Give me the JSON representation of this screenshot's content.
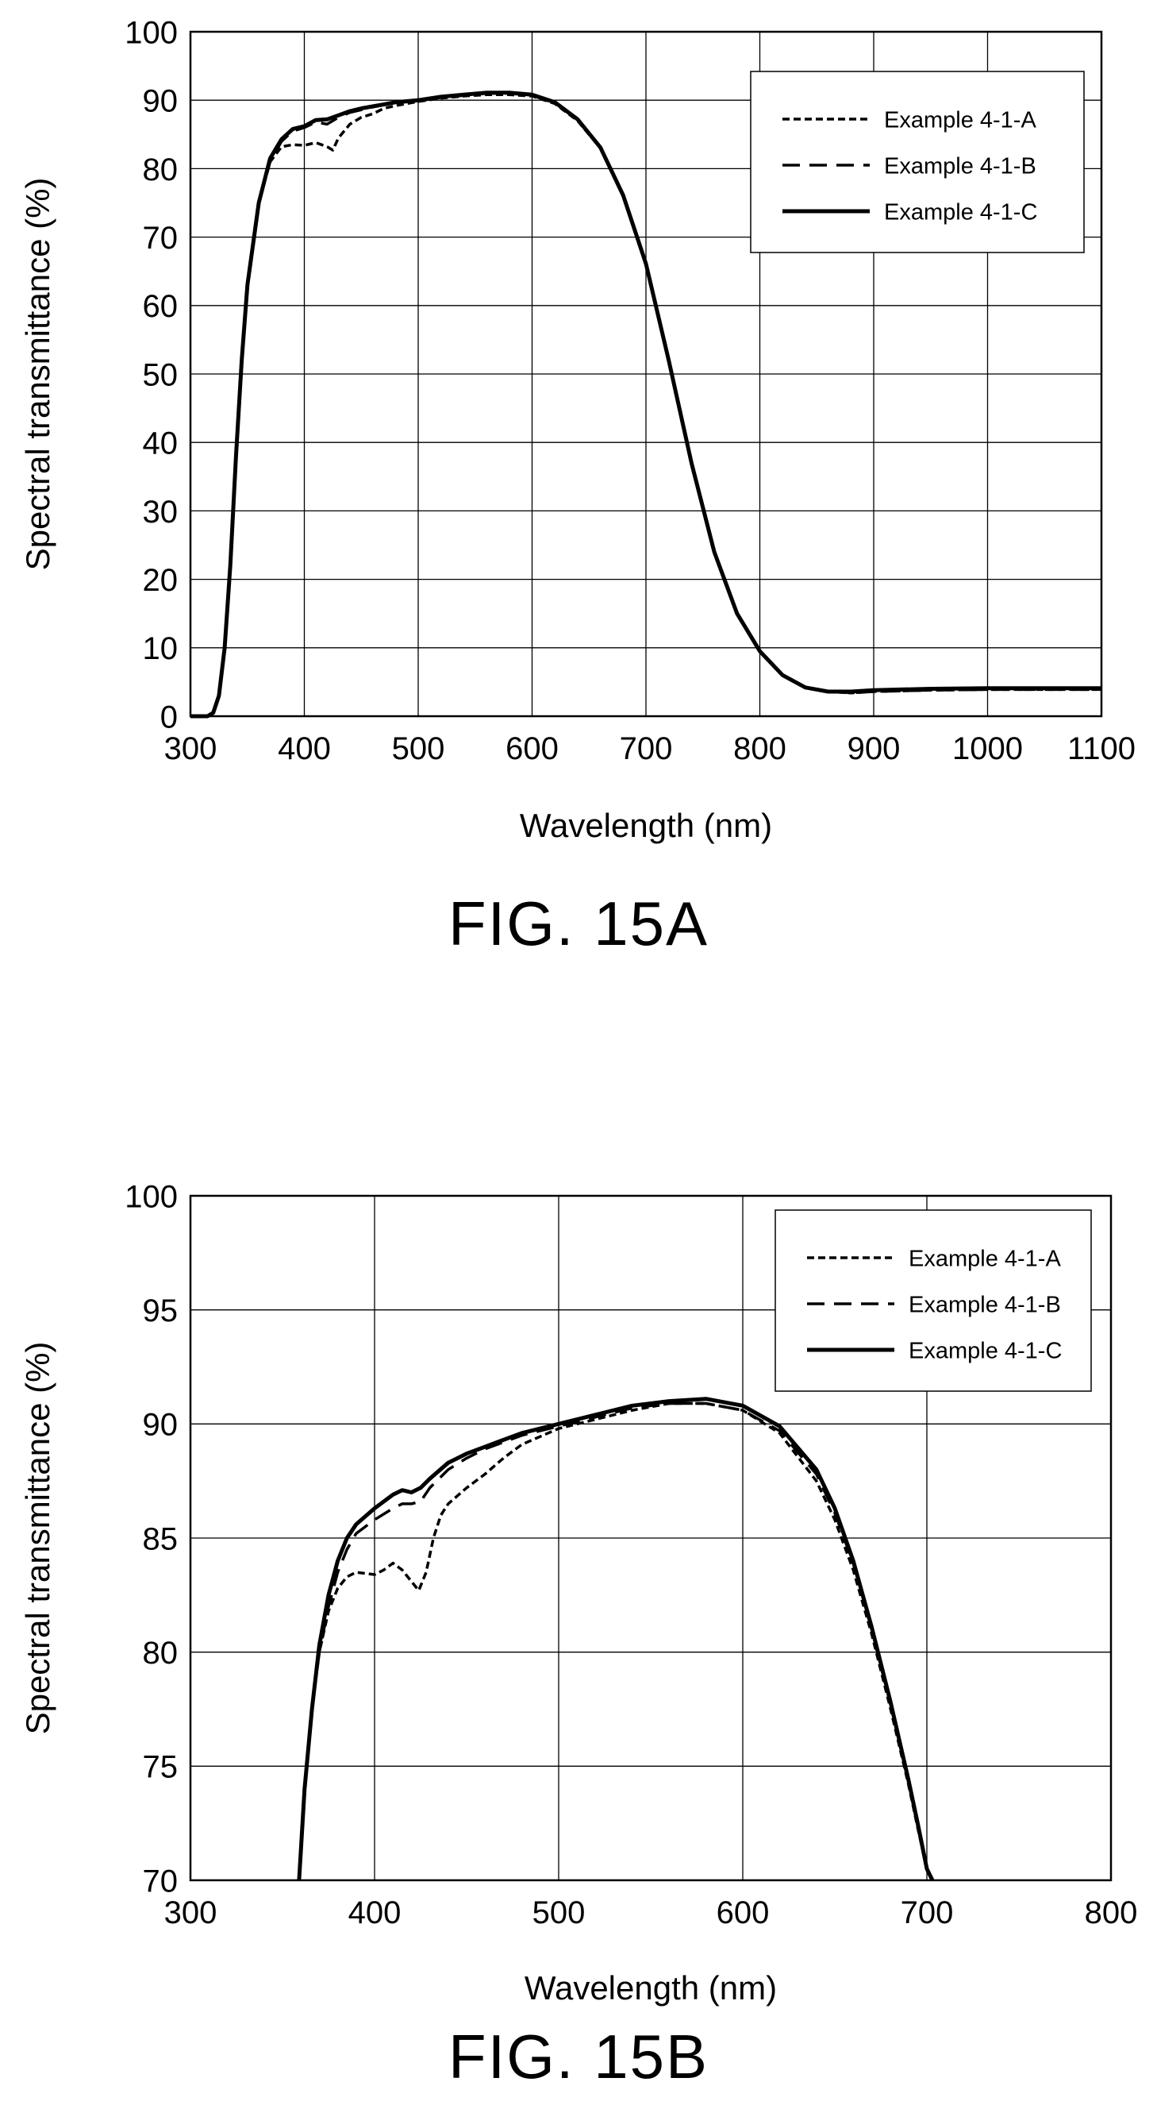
{
  "figures": [
    {
      "caption": "FIG. 15A",
      "chart_data": {
        "type": "line",
        "xlabel": "Wavelength (nm)",
        "ylabel": "Spectral transmittance (%)",
        "xlim": [
          300,
          1100
        ],
        "ylim": [
          0,
          100
        ],
        "xticks": [
          300,
          400,
          500,
          600,
          700,
          800,
          900,
          1000,
          1100
        ],
        "yticks": [
          0,
          10,
          20,
          30,
          40,
          50,
          60,
          70,
          80,
          90,
          100
        ],
        "grid": true,
        "legend_position": "top-right",
        "series": [
          {
            "name": "Example 4-1-A",
            "dash": "short-dash",
            "x": [
              300,
              315,
              320,
              325,
              330,
              335,
              340,
              345,
              350,
              360,
              370,
              380,
              390,
              400,
              410,
              420,
              425,
              430,
              440,
              450,
              460,
              470,
              480,
              500,
              520,
              540,
              560,
              580,
              600,
              620,
              640,
              660,
              680,
              700,
              720,
              740,
              760,
              780,
              800,
              820,
              840,
              860,
              880,
              900,
              950,
              1000,
              1050,
              1100
            ],
            "y": [
              0,
              0,
              0.5,
              3,
              10,
              22,
              38,
              52,
              63,
              75,
              81,
              83.2,
              83.5,
              83.4,
              83.8,
              83.2,
              82.7,
              84.5,
              86.5,
              87.5,
              88,
              88.8,
              89.2,
              89.8,
              90.3,
              90.6,
              90.8,
              90.8,
              90.6,
              89.5,
              87,
              83,
              76,
              66,
              52,
              37,
              24,
              15,
              9.5,
              6,
              4.2,
              3.6,
              3.4,
              3.6,
              3.8,
              3.9,
              3.9,
              3.9
            ]
          },
          {
            "name": "Example 4-1-B",
            "dash": "long-dash",
            "x": [
              300,
              315,
              320,
              325,
              330,
              335,
              340,
              345,
              350,
              360,
              370,
              380,
              390,
              400,
              410,
              420,
              430,
              440,
              450,
              460,
              470,
              480,
              500,
              520,
              540,
              560,
              580,
              600,
              620,
              640,
              660,
              680,
              700,
              720,
              740,
              760,
              780,
              800,
              820,
              840,
              860,
              880,
              900,
              950,
              1000,
              1050,
              1100
            ],
            "y": [
              0,
              0,
              0.5,
              3,
              10,
              22,
              38,
              52,
              63,
              75,
              81,
              84,
              85.5,
              86,
              86.8,
              86.5,
              87.5,
              88.2,
              88.6,
              89,
              89.3,
              89.6,
              89.9,
              90.4,
              90.7,
              91,
              91,
              90.7,
              89.6,
              87.1,
              83,
              76,
              66,
              52,
              37,
              24,
              15,
              9.5,
              6,
              4.2,
              3.6,
              3.4,
              3.6,
              3.8,
              3.9,
              3.9,
              3.9
            ]
          },
          {
            "name": "Example 4-1-C",
            "dash": "solid",
            "x": [
              300,
              315,
              320,
              325,
              330,
              335,
              340,
              345,
              350,
              360,
              370,
              380,
              390,
              400,
              410,
              420,
              430,
              440,
              450,
              460,
              470,
              480,
              500,
              520,
              540,
              560,
              580,
              600,
              620,
              640,
              660,
              680,
              700,
              720,
              740,
              760,
              780,
              800,
              820,
              840,
              860,
              880,
              900,
              950,
              1000,
              1050,
              1100
            ],
            "y": [
              0,
              0,
              0.5,
              3,
              10,
              22,
              38,
              52,
              63,
              75,
              81.5,
              84.3,
              85.8,
              86.2,
              87.1,
              87.2,
              87.8,
              88.4,
              88.8,
              89.1,
              89.4,
              89.7,
              90,
              90.5,
              90.8,
              91.1,
              91.1,
              90.8,
              89.7,
              87.2,
              83.1,
              76.1,
              66.1,
              52,
              37,
              24,
              15,
              9.5,
              6,
              4.2,
              3.6,
              3.6,
              3.8,
              4,
              4.1,
              4.1,
              4.1
            ]
          }
        ]
      }
    },
    {
      "caption": "FIG. 15B",
      "chart_data": {
        "type": "line",
        "xlabel": "Wavelength (nm)",
        "ylabel": "Spectral transmittance (%)",
        "xlim": [
          300,
          800
        ],
        "ylim": [
          70,
          100
        ],
        "xticks": [
          300,
          400,
          500,
          600,
          700,
          800
        ],
        "yticks": [
          70,
          75,
          80,
          85,
          90,
          95,
          100
        ],
        "grid": true,
        "legend_position": "top-right",
        "series": [
          {
            "name": "Example 4-1-A",
            "dash": "short-dash",
            "x": [
              359,
              362,
              366,
              370,
              375,
              380,
              385,
              390,
              400,
              405,
              410,
              415,
              420,
              424,
              428,
              432,
              436,
              440,
              450,
              460,
              470,
              480,
              500,
              520,
              540,
              560,
              580,
              600,
              620,
              640,
              650,
              660,
              670,
              680,
              690,
              695,
              700,
              703
            ],
            "y": [
              70,
              74,
              77.5,
              80,
              81.8,
              82.8,
              83.3,
              83.5,
              83.4,
              83.6,
              83.9,
              83.6,
              83.1,
              82.7,
              83.5,
              85,
              86,
              86.5,
              87.2,
              87.8,
              88.5,
              89.1,
              89.8,
              90.2,
              90.6,
              90.9,
              90.9,
              90.6,
              89.6,
              87.5,
              85.8,
              83.6,
              80.8,
              77.6,
              74.2,
              72.3,
              70.5,
              70
            ]
          },
          {
            "name": "Example 4-1-B",
            "dash": "long-dash",
            "x": [
              359,
              362,
              366,
              370,
              375,
              380,
              385,
              390,
              400,
              410,
              415,
              420,
              425,
              430,
              440,
              450,
              460,
              470,
              480,
              500,
              520,
              540,
              560,
              580,
              600,
              620,
              640,
              650,
              660,
              670,
              680,
              690,
              695,
              700,
              703
            ],
            "y": [
              70,
              74,
              77.5,
              80,
              82,
              83.5,
              84.5,
              85.2,
              85.8,
              86.3,
              86.5,
              86.5,
              86.6,
              87.2,
              88,
              88.5,
              88.9,
              89.2,
              89.5,
              89.9,
              90.3,
              90.7,
              90.9,
              90.9,
              90.6,
              89.7,
              87.8,
              86.1,
              83.9,
              81,
              77.8,
              74.3,
              72.4,
              70.5,
              70
            ]
          },
          {
            "name": "Example 4-1-C",
            "dash": "solid",
            "x": [
              359,
              362,
              366,
              370,
              375,
              380,
              385,
              390,
              400,
              410,
              415,
              420,
              425,
              430,
              440,
              450,
              460,
              470,
              480,
              500,
              520,
              540,
              560,
              580,
              600,
              620,
              640,
              650,
              660,
              670,
              680,
              690,
              695,
              700,
              703
            ],
            "y": [
              70,
              74,
              77.5,
              80.3,
              82.5,
              84,
              85,
              85.6,
              86.3,
              86.9,
              87.1,
              87,
              87.2,
              87.6,
              88.3,
              88.7,
              89,
              89.3,
              89.6,
              90,
              90.4,
              90.8,
              91,
              91.1,
              90.8,
              89.9,
              88,
              86.3,
              84,
              81.1,
              77.9,
              74.4,
              72.5,
              70.5,
              70
            ]
          }
        ]
      }
    }
  ]
}
